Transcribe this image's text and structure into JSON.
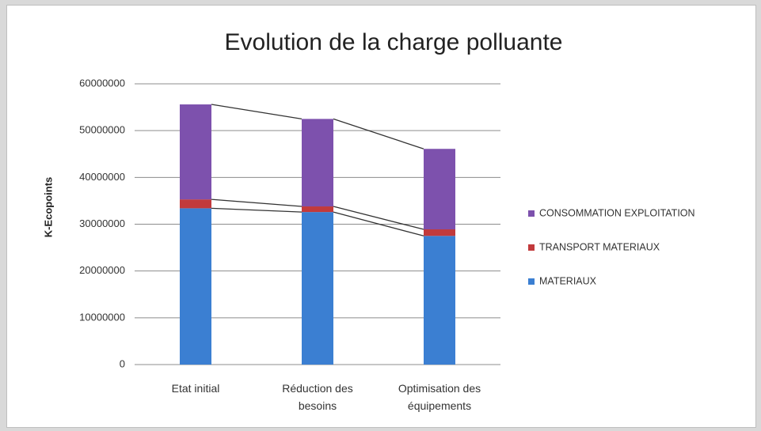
{
  "chart_data": {
    "type": "stacked_bar",
    "title": "Evolution de la charge polluante",
    "y_label": "K-Ecopoints",
    "categories": [
      "Etat initial",
      "Réduction des besoins",
      "Optimisation des équipements"
    ],
    "series": [
      {
        "name": "MATERIAUX",
        "color": "#3b7fd2",
        "values": [
          33400000,
          32600000,
          27500000
        ]
      },
      {
        "name": "TRANSPORT MATERIAUX",
        "color": "#c23a3c",
        "values": [
          1900000,
          1200000,
          1400000
        ]
      },
      {
        "name": "CONSOMMATION EXPLOITATION",
        "color": "#7d51ad",
        "values": [
          20300000,
          18700000,
          17200000
        ]
      }
    ],
    "ylim": [
      0,
      60000000
    ],
    "yticks": [
      0,
      10000000,
      20000000,
      30000000,
      40000000,
      50000000,
      60000000
    ],
    "grid": true,
    "legend": "right",
    "series_lines": true
  }
}
